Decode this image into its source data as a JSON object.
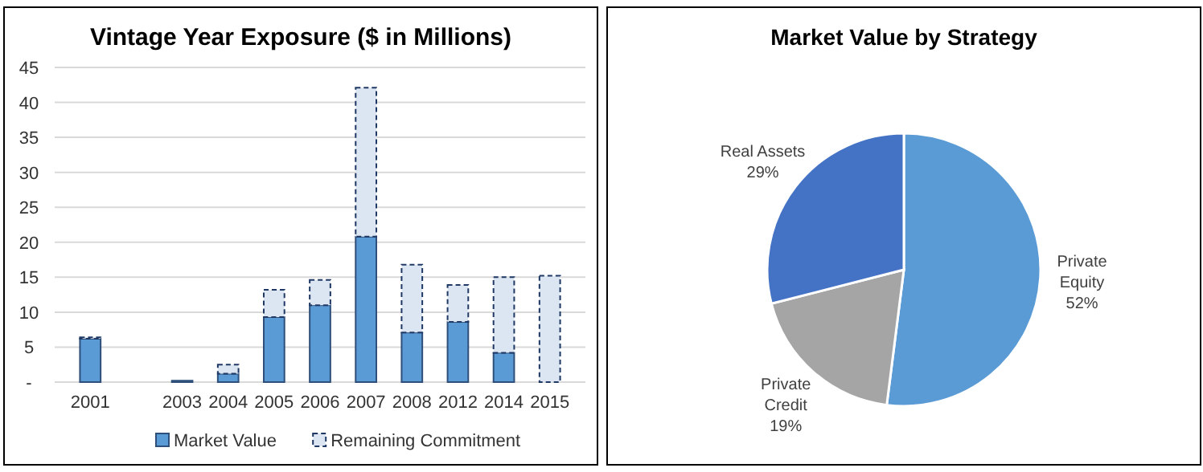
{
  "chart_data": [
    {
      "type": "bar",
      "title": "Vintage Year Exposure ($ in Millions)",
      "categories": [
        "2001",
        null,
        "2003",
        "2004",
        "2005",
        "2006",
        "2007",
        "2008",
        "2012",
        "2014",
        "2015"
      ],
      "stacked": true,
      "series": [
        {
          "name": "Market Value",
          "color": "#5b9bd5",
          "line_style": "solid",
          "values": [
            6.2,
            null,
            0.2,
            1.2,
            9.3,
            11,
            20.8,
            7.1,
            8.6,
            4.2,
            null
          ]
        },
        {
          "name": "Remaining Commitment",
          "color": "#dce6f2",
          "line_style": "dashed",
          "values": [
            0.2,
            null,
            null,
            1.3,
            3.9,
            3.6,
            21.3,
            9.7,
            5.3,
            10.8,
            15.2
          ]
        }
      ],
      "ylim": [
        0,
        45
      ],
      "yticks": [
        {
          "value": 0,
          "label": "-"
        },
        5,
        10,
        15,
        20,
        25,
        30,
        35,
        40,
        45
      ],
      "grid": "y",
      "legend": "bottom"
    },
    {
      "type": "pie",
      "title": "Market Value by Strategy",
      "categories": [
        "Private Equity",
        "Private Credit",
        "Real Assets"
      ],
      "values": [
        52,
        19,
        29
      ],
      "colors": [
        "#5b9bd5",
        "#a5a5a5",
        "#4472c4"
      ],
      "value_labels": [
        "52%",
        "19%",
        "29%"
      ]
    }
  ]
}
